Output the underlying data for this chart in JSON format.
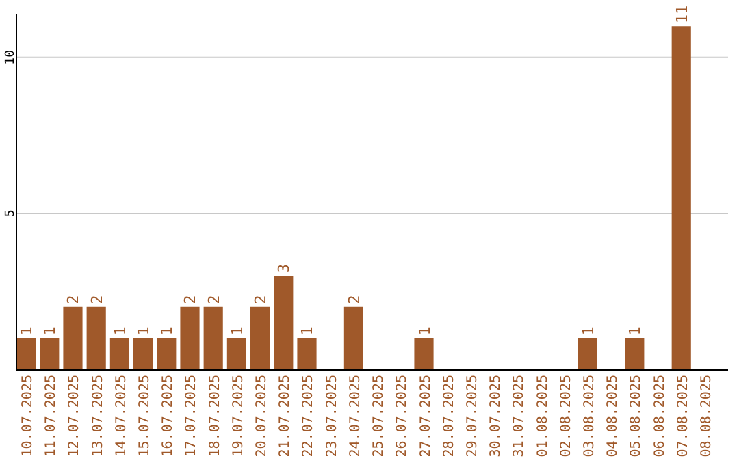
{
  "chart_data": {
    "type": "bar",
    "categories": [
      "10.07.2025",
      "11.07.2025",
      "12.07.2025",
      "13.07.2025",
      "14.07.2025",
      "15.07.2025",
      "16.07.2025",
      "17.07.2025",
      "18.07.2025",
      "19.07.2025",
      "20.07.2025",
      "21.07.2025",
      "22.07.2025",
      "23.07.2025",
      "24.07.2025",
      "25.07.2025",
      "26.07.2025",
      "27.07.2025",
      "28.07.2025",
      "29.07.2025",
      "30.07.2025",
      "31.07.2025",
      "01.08.2025",
      "02.08.2025",
      "03.08.2025",
      "04.08.2025",
      "05.08.2025",
      "06.08.2025",
      "07.08.2025",
      "08.08.2025"
    ],
    "values": [
      1,
      1,
      2,
      2,
      1,
      1,
      1,
      2,
      2,
      1,
      2,
      3,
      1,
      0,
      2,
      0,
      0,
      1,
      0,
      0,
      0,
      0,
      0,
      0,
      1,
      0,
      1,
      0,
      11,
      0
    ],
    "value_labels": [
      "1",
      "1",
      "2",
      "2",
      "1",
      "1",
      "1",
      "2",
      "2",
      "1",
      "2",
      "3",
      "1",
      null,
      "2",
      null,
      null,
      "1",
      null,
      null,
      null,
      null,
      null,
      null,
      "1",
      null,
      "1",
      null,
      "11",
      null
    ],
    "color": "#a0592a",
    "ylim": [
      0,
      11.4
    ],
    "yticks": [
      5,
      10
    ],
    "grid": "y"
  }
}
